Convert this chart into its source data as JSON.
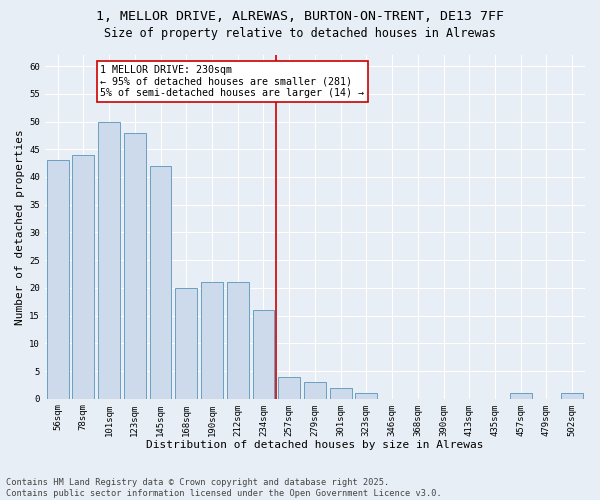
{
  "title1": "1, MELLOR DRIVE, ALREWAS, BURTON-ON-TRENT, DE13 7FF",
  "title2": "Size of property relative to detached houses in Alrewas",
  "xlabel": "Distribution of detached houses by size in Alrewas",
  "ylabel": "Number of detached properties",
  "categories": [
    "56sqm",
    "78sqm",
    "101sqm",
    "123sqm",
    "145sqm",
    "168sqm",
    "190sqm",
    "212sqm",
    "234sqm",
    "257sqm",
    "279sqm",
    "301sqm",
    "323sqm",
    "346sqm",
    "368sqm",
    "390sqm",
    "413sqm",
    "435sqm",
    "457sqm",
    "479sqm",
    "502sqm"
  ],
  "values": [
    43,
    44,
    50,
    48,
    42,
    20,
    21,
    21,
    16,
    4,
    3,
    2,
    1,
    0,
    0,
    0,
    0,
    0,
    1,
    0,
    1
  ],
  "bar_color": "#ccdaeb",
  "bar_edgecolor": "#6a9fc0",
  "vline_x_idx": 8,
  "vline_color": "#cc0000",
  "annotation_text": "1 MELLOR DRIVE: 230sqm\n← 95% of detached houses are smaller (281)\n5% of semi-detached houses are larger (14) →",
  "annotation_box_edgecolor": "#cc0000",
  "ylim": [
    0,
    62
  ],
  "yticks": [
    0,
    5,
    10,
    15,
    20,
    25,
    30,
    35,
    40,
    45,
    50,
    55,
    60
  ],
  "footer": "Contains HM Land Registry data © Crown copyright and database right 2025.\nContains public sector information licensed under the Open Government Licence v3.0.",
  "bg_color": "#e8eef5",
  "plot_bg_color": "#e8eef5",
  "title_fontsize": 9.5,
  "subtitle_fontsize": 8.5,
  "tick_fontsize": 6.5,
  "label_fontsize": 8,
  "annot_fontsize": 7.2,
  "footer_fontsize": 6.2
}
